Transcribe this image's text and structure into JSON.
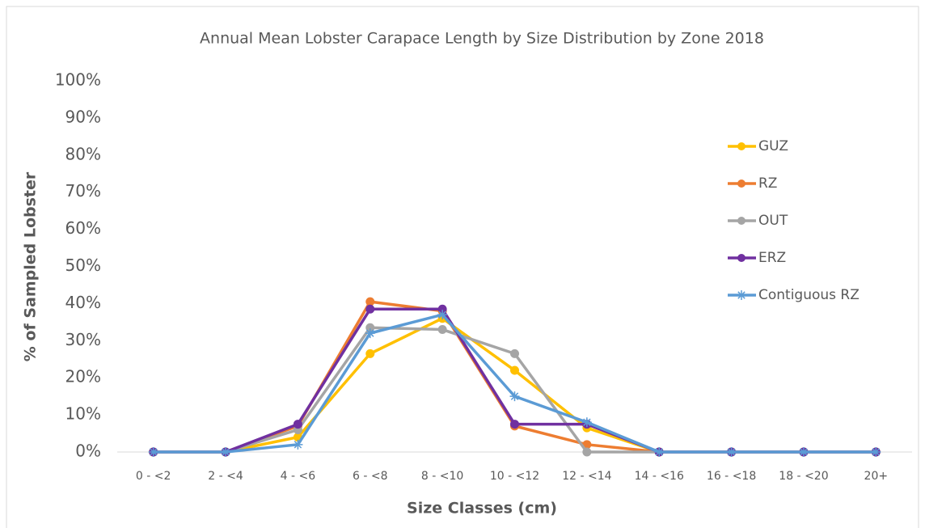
{
  "chart_data": {
    "type": "line",
    "title": "Annual Mean Lobster Carapace Length by Size Distribution by Zone 2018",
    "x_label": "Size Classes (cm)",
    "y_label": "% of Sampled Lobster",
    "categories": [
      "0 - <2",
      "2 - <4",
      "4 - <6",
      "6 - <8",
      "8 - <10",
      "10 - <12",
      "12 - <14",
      "14 - <16",
      "16 - <18",
      "18 - <20",
      "20+"
    ],
    "series": [
      {
        "name": "GUZ",
        "color": "#ffc000",
        "marker": "circle",
        "values": [
          0,
          0,
          4,
          26.5,
          36,
          22,
          6.5,
          0,
          0,
          0,
          0
        ]
      },
      {
        "name": "RZ",
        "color": "#ed7d31",
        "marker": "circle",
        "values": [
          0,
          0,
          7,
          40.5,
          38,
          7,
          2,
          0,
          0,
          0,
          0
        ]
      },
      {
        "name": "OUT",
        "color": "#a5a5a5",
        "marker": "circle",
        "values": [
          0,
          0,
          6,
          33.5,
          33,
          26.5,
          0,
          0,
          0,
          0,
          0
        ]
      },
      {
        "name": "ERZ",
        "color": "#7030a0",
        "marker": "circle",
        "values": [
          0,
          0,
          7.5,
          38.5,
          38.5,
          7.5,
          7.5,
          0,
          0,
          0,
          0
        ]
      },
      {
        "name": "Contiguous RZ",
        "color": "#5b9bd5",
        "marker": "star",
        "values": [
          0,
          0,
          2,
          32,
          37,
          15,
          8,
          0,
          0,
          0,
          0
        ]
      }
    ],
    "ylim": [
      0,
      100
    ],
    "yticks": [
      {
        "value": 0,
        "label": "0%"
      },
      {
        "value": 10,
        "label": "10%"
      },
      {
        "value": 20,
        "label": "20%"
      },
      {
        "value": 30,
        "label": "30%"
      },
      {
        "value": 40,
        "label": "40%"
      },
      {
        "value": 50,
        "label": "50%"
      },
      {
        "value": 60,
        "label": "60%"
      },
      {
        "value": 70,
        "label": "70%"
      },
      {
        "value": 80,
        "label": "80%"
      },
      {
        "value": 90,
        "label": "90%"
      },
      {
        "value": 100,
        "label": "100%"
      }
    ],
    "grid": false,
    "legend": "right"
  }
}
